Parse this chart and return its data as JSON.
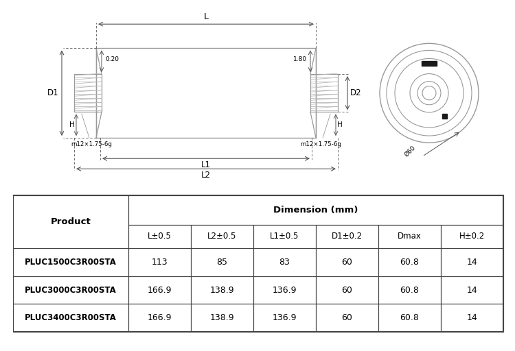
{
  "table_headers": [
    "Product",
    "L±0.5",
    "L2±0.5",
    "L1±0.5",
    "D1±0.2",
    "Dmax",
    "H±0.2"
  ],
  "dimension_header": "Dimension (mm)",
  "rows": [
    [
      "PLUC1500C3R00STA",
      "113",
      "85",
      "83",
      "60",
      "60.8",
      "14"
    ],
    [
      "PLUC3000C3R00STA",
      "166.9",
      "138.9",
      "136.9",
      "60",
      "60.8",
      "14"
    ],
    [
      "PLUC3400C3R00STA",
      "166.9",
      "138.9",
      "136.9",
      "60",
      "60.8",
      "14"
    ]
  ],
  "bg_color": "#ffffff",
  "line_color": "#000000",
  "edge_color": "#999999",
  "dim_color": "#555555",
  "thread_color": "#bbbbbb"
}
